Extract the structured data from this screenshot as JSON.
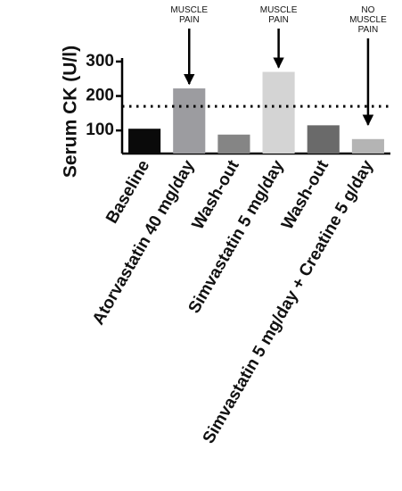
{
  "chart_data": {
    "type": "bar",
    "y_label": "Serum CK (U/l)",
    "categories": [
      "Baseline",
      "Atorvastatin 40 mg/day",
      "Wash-out",
      "Simvastatin 5 mg/day",
      "Wash-out",
      "Simvastatin 5 mg/day + Creatine 5 g/day"
    ],
    "values": [
      105,
      222,
      88,
      270,
      115,
      75
    ],
    "colors": [
      "#0a0a0a",
      "#9c9ca0",
      "#858585",
      "#d4d4d4",
      "#6a6a6a",
      "#b4b4b4"
    ],
    "ylim": [
      33,
      305
    ],
    "yticks": [
      100,
      200,
      300
    ],
    "reference_line": 170,
    "annotations": [
      {
        "at": "Atorvastatin 40 mg/day",
        "lines": [
          "MUSCLE",
          "PAIN"
        ]
      },
      {
        "at": "Simvastatin 5 mg/day",
        "lines": [
          "MUSCLE",
          "PAIN"
        ]
      },
      {
        "at": "Simvastatin 5 mg/day + Creatine 5 g/day",
        "lines": [
          "NO",
          "MUSCLE",
          "PAIN"
        ]
      }
    ]
  }
}
